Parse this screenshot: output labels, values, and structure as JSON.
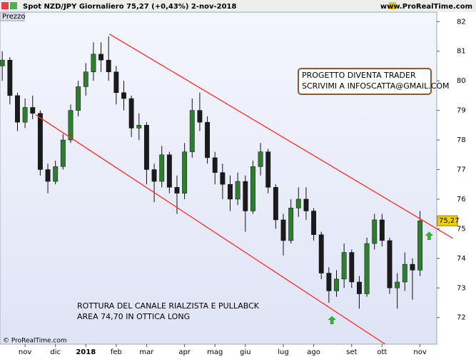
{
  "header": {
    "title": "Spot NZD/JPY   Giornaliero   75,27 (+0,43%)   2-nov-2018",
    "site": "www.ProRealTime.com"
  },
  "chart_data": {
    "type": "candlestick",
    "panel_label": "Prezzo",
    "footer": "© ProRealTime.com",
    "categories": [
      null,
      null,
      null,
      "nov",
      null,
      null,
      null,
      "dic",
      null,
      null,
      null,
      "2018",
      null,
      null,
      null,
      "feb",
      null,
      null,
      null,
      "mar",
      null,
      null,
      null,
      null,
      "apr",
      null,
      null,
      null,
      "mag",
      null,
      null,
      null,
      "giu",
      null,
      null,
      null,
      null,
      "lug",
      null,
      null,
      null,
      "ago",
      null,
      null,
      null,
      null,
      "set",
      null,
      null,
      null,
      "ott",
      null,
      null,
      null,
      null,
      "nov"
    ],
    "open": [
      80.5,
      80.7,
      79.5,
      78.6,
      79.1,
      78.9,
      77.0,
      76.6,
      77.1,
      78.0,
      79.0,
      79.8,
      80.3,
      80.9,
      80.7,
      80.3,
      79.6,
      79.4,
      78.4,
      78.5,
      77.0,
      76.6,
      77.5,
      76.4,
      76.2,
      77.6,
      79.0,
      78.6,
      77.4,
      76.9,
      76.5,
      76.0,
      76.6,
      75.6,
      77.1,
      77.6,
      76.4,
      75.3,
      74.6,
      75.7,
      76.0,
      75.6,
      74.8,
      73.5,
      72.9,
      73.3,
      74.2,
      73.2,
      72.8,
      74.5,
      75.3,
      74.6,
      73.0,
      73.2,
      73.8,
      73.6
    ],
    "high": [
      81.0,
      80.8,
      79.6,
      79.4,
      79.5,
      79.0,
      77.2,
      77.3,
      78.2,
      79.2,
      80.0,
      80.6,
      81.3,
      81.3,
      81.5,
      80.5,
      80.0,
      79.5,
      78.9,
      78.6,
      77.2,
      77.8,
      77.6,
      76.8,
      77.9,
      79.4,
      79.6,
      78.8,
      77.6,
      77.2,
      76.8,
      76.9,
      76.8,
      77.3,
      77.9,
      77.7,
      76.5,
      75.5,
      76.0,
      76.4,
      76.4,
      75.7,
      74.9,
      73.7,
      73.6,
      74.5,
      74.3,
      73.4,
      74.7,
      75.5,
      75.5,
      74.7,
      73.5,
      74.2,
      74.0,
      75.6
    ],
    "low": [
      80.0,
      79.2,
      78.3,
      78.4,
      78.7,
      76.8,
      76.2,
      76.5,
      77.0,
      77.9,
      78.8,
      79.5,
      80.0,
      80.3,
      80.0,
      79.2,
      79.0,
      78.1,
      78.0,
      76.5,
      75.9,
      76.4,
      76.2,
      75.5,
      76.0,
      77.4,
      78.3,
      77.2,
      76.5,
      76.0,
      75.6,
      75.8,
      74.9,
      75.5,
      76.8,
      76.2,
      75.0,
      74.1,
      74.5,
      75.4,
      75.3,
      74.6,
      73.3,
      72.5,
      72.7,
      73.0,
      73.0,
      72.3,
      72.7,
      74.3,
      74.4,
      72.8,
      72.3,
      72.9,
      72.6,
      73.4
    ],
    "close": [
      80.7,
      79.5,
      78.6,
      79.1,
      78.9,
      77.0,
      76.6,
      77.1,
      78.0,
      79.0,
      79.8,
      80.3,
      80.9,
      80.7,
      80.3,
      79.6,
      79.4,
      78.4,
      78.5,
      77.0,
      76.6,
      77.5,
      76.4,
      76.2,
      77.6,
      79.0,
      78.6,
      77.4,
      76.9,
      76.5,
      76.0,
      76.6,
      75.6,
      77.1,
      77.6,
      76.4,
      75.3,
      74.6,
      75.7,
      76.0,
      75.6,
      74.8,
      73.5,
      72.9,
      73.3,
      74.2,
      73.2,
      72.8,
      74.5,
      75.3,
      74.6,
      73.0,
      73.2,
      73.8,
      73.6,
      75.27
    ],
    "last_price": 75.27,
    "last_price_label": "75,27",
    "up_color": "#2f7d2f",
    "down_color": "#1b1b1b",
    "line_color": "#ff2a2a",
    "arrow_color": "#2eb82e",
    "xlim": [
      -0.3,
      57.2
    ],
    "ylim": [
      71.1,
      82.32
    ],
    "yticks": [
      72,
      73,
      74,
      75,
      76,
      77,
      78,
      79,
      80,
      81,
      82
    ],
    "trendlines": [
      {
        "x": [
          14.1,
          59.3
        ],
        "y": [
          81.58,
          74.68
        ]
      },
      {
        "x": [
          4.4,
          50.4
        ],
        "y": [
          78.85,
          71.1
        ]
      }
    ],
    "arrows": [
      {
        "x": 43.4,
        "y": 71.9
      },
      {
        "x": 56.2,
        "y": 74.75
      }
    ],
    "box_text": [
      "PROGETTO DIVENTA TRADER",
      "SCRIVIMI A INFOSCATTA@GMAIL.COM"
    ],
    "note_text": [
      "ROTTURA DEL CANALE RIALZISTA E PULLABCK",
      "AREA 74,70 IN OTTICA LONG"
    ]
  }
}
